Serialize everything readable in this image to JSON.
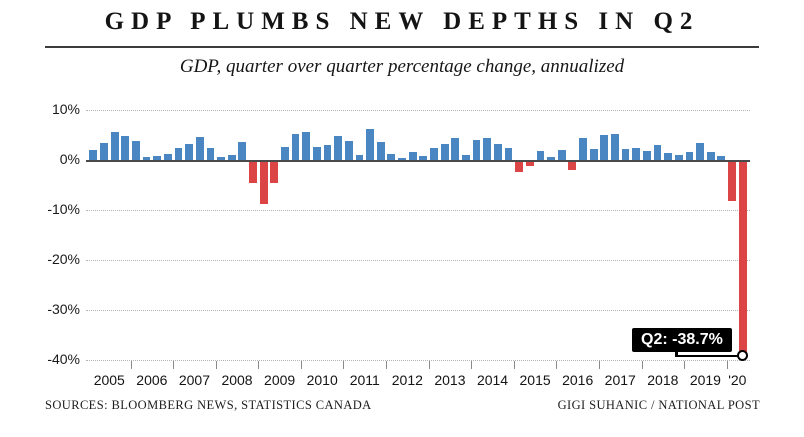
{
  "title": "GDP PLUMBS NEW DEPTHS IN Q2",
  "subtitle": "GDP, quarter over quarter percentage change, annualized",
  "footer": {
    "sources": "SOURCES: BLOOMBERG NEWS, STATISTICS CANADA",
    "credit": "GIGI SUHANIC / NATIONAL POST"
  },
  "annotation": {
    "label": "Q2: -38.7%"
  },
  "colors": {
    "positive_bar": "#4a86c2",
    "negative_bar": "#dc4545",
    "axis": "#4a4a4a",
    "gridline": "#b3b3b3",
    "annotation_bg": "#000000",
    "annotation_text": "#ffffff"
  },
  "chart_data": {
    "type": "bar",
    "title": "GDP PLUMBS NEW DEPTHS IN Q2",
    "subtitle": "GDP, quarter over quarter percentage change, annualized",
    "unit": "percent, annualized quarter-over-quarter change",
    "grid": "horizontal dotted",
    "legend": "none",
    "ylim": [
      -40,
      10
    ],
    "y_ticks": [
      {
        "value": 10,
        "label": "10%"
      },
      {
        "value": 0,
        "label": "0%"
      },
      {
        "value": -10,
        "label": "-10%"
      },
      {
        "value": -20,
        "label": "-20%"
      },
      {
        "value": -30,
        "label": "-30%"
      },
      {
        "value": -40,
        "label": "-40%"
      }
    ],
    "x_year_labels": [
      "2005",
      "2006",
      "2007",
      "2008",
      "2009",
      "2010",
      "2011",
      "2012",
      "2013",
      "2014",
      "2015",
      "2016",
      "2017",
      "2018",
      "2019",
      "'20"
    ],
    "start_year": 2005,
    "start_quarter": 1,
    "values": [
      2.0,
      3.3,
      5.6,
      4.7,
      3.8,
      0.5,
      0.8,
      1.2,
      2.4,
      3.2,
      4.5,
      2.3,
      0.5,
      1.0,
      3.5,
      -4.7,
      -8.8,
      -4.6,
      2.5,
      5.2,
      5.5,
      2.5,
      3.0,
      4.8,
      3.7,
      1.0,
      6.1,
      3.5,
      1.2,
      0.3,
      1.5,
      0.8,
      2.3,
      3.2,
      4.3,
      1.0,
      3.9,
      4.3,
      3.2,
      2.3,
      -2.5,
      -1.2,
      1.7,
      0.5,
      2.0,
      -2.1,
      4.3,
      2.1,
      5.0,
      5.2,
      2.1,
      2.3,
      1.8,
      3.0,
      1.3,
      1.0,
      1.5,
      3.3,
      1.5,
      0.8,
      -8.2,
      -38.7
    ],
    "highlight": {
      "quarter": "2020 Q2",
      "value": -38.7,
      "label": "Q2: -38.7%"
    }
  }
}
